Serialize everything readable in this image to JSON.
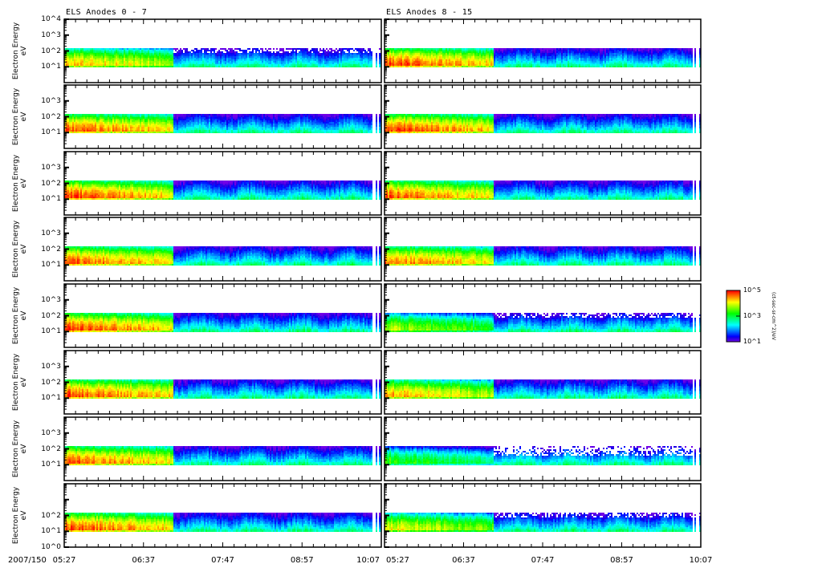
{
  "chart_data": {
    "type": "heatmap",
    "columns": [
      {
        "title": "ELS Anodes 0 - 7",
        "anodes": [
          0,
          1,
          2,
          3,
          4,
          5,
          6,
          7
        ]
      },
      {
        "title": "ELS Anodes 8 - 15",
        "anodes": [
          8,
          9,
          10,
          11,
          12,
          13,
          14,
          15
        ]
      }
    ],
    "ylabel": "Electron Energy",
    "yunit": "eV",
    "yscale": "log",
    "ylim_eV": [
      1,
      10000
    ],
    "ytick_labels_top_panel": [
      "10^4",
      "10^3",
      "10^2",
      "10^1"
    ],
    "ytick_labels_middle_panels": [
      "10^3",
      "10^2",
      "10^1"
    ],
    "ytick_labels_bottom_panel": [
      "10^2",
      "10^1",
      "10^0"
    ],
    "date_label": "2007/150",
    "xlim": [
      "05:27",
      "10:07"
    ],
    "xtick_labels": [
      "05:27",
      "06:37",
      "07:47",
      "08:57",
      "10:07"
    ],
    "xtick_label_left_panel_end": "10:07",
    "minor_tick_interval_min": 10,
    "colorbar": {
      "label": "(ct-sec-sr-cm^2)/eV",
      "tick_labels": [
        "10^1",
        "10^3",
        "10^5"
      ],
      "colormap": "rainbow (purple low - red high)"
    },
    "observed_energy_range_eV": [
      10,
      150
    ],
    "transition_time": "07:03",
    "data_gap_time": "10:00",
    "panels": [
      {
        "col": 0,
        "row": 0,
        "initial_intensity": 0.85,
        "max_energy_eV": 150,
        "sparse_top": true
      },
      {
        "col": 0,
        "row": 1,
        "initial_intensity": 0.95,
        "max_energy_eV": 150,
        "sparse_top": false
      },
      {
        "col": 0,
        "row": 2,
        "initial_intensity": 0.97,
        "max_energy_eV": 150,
        "sparse_top": false
      },
      {
        "col": 0,
        "row": 3,
        "initial_intensity": 0.95,
        "max_energy_eV": 150,
        "sparse_top": false
      },
      {
        "col": 0,
        "row": 4,
        "initial_intensity": 0.97,
        "max_energy_eV": 150,
        "sparse_top": false
      },
      {
        "col": 0,
        "row": 5,
        "initial_intensity": 0.97,
        "max_energy_eV": 150,
        "sparse_top": false
      },
      {
        "col": 0,
        "row": 6,
        "initial_intensity": 0.95,
        "max_energy_eV": 150,
        "sparse_top": false
      },
      {
        "col": 0,
        "row": 7,
        "initial_intensity": 0.97,
        "max_energy_eV": 150,
        "sparse_top": false
      },
      {
        "col": 1,
        "row": 0,
        "initial_intensity": 0.97,
        "max_energy_eV": 150,
        "sparse_top": false
      },
      {
        "col": 1,
        "row": 1,
        "initial_intensity": 0.98,
        "max_energy_eV": 150,
        "sparse_top": false
      },
      {
        "col": 1,
        "row": 2,
        "initial_intensity": 0.95,
        "max_energy_eV": 150,
        "sparse_top": false
      },
      {
        "col": 1,
        "row": 3,
        "initial_intensity": 0.93,
        "max_energy_eV": 150,
        "sparse_top": false
      },
      {
        "col": 1,
        "row": 4,
        "initial_intensity": 0.72,
        "max_energy_eV": 150,
        "sparse_top": true
      },
      {
        "col": 1,
        "row": 5,
        "initial_intensity": 0.88,
        "max_energy_eV": 150,
        "sparse_top": false
      },
      {
        "col": 1,
        "row": 6,
        "initial_intensity": 0.62,
        "max_energy_eV": 150,
        "sparse_top": true
      },
      {
        "col": 1,
        "row": 7,
        "initial_intensity": 0.8,
        "max_energy_eV": 150,
        "sparse_top": true
      }
    ]
  }
}
